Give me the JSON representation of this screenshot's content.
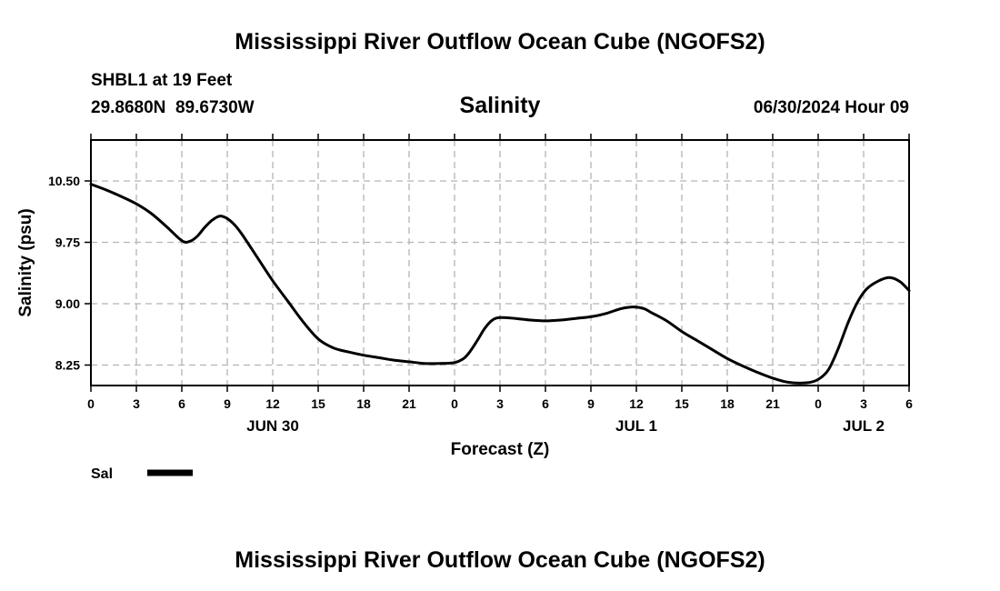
{
  "page": {
    "title": "Mississippi River Outflow Ocean Cube (NGOFS2)",
    "footer_title": "Mississippi River Outflow Ocean Cube (NGOFS2)"
  },
  "header": {
    "station": "SHBL1 at 19 Feet",
    "coords": "29.8680N  89.6730W",
    "variable": "Salinity",
    "datetime": "06/30/2024 Hour 09"
  },
  "chart_data": {
    "type": "line",
    "title": "Salinity",
    "xlabel": "Forecast (Z)",
    "ylabel": "Salinity (psu)",
    "ylim": [
      8.0,
      11.0
    ],
    "xlim": [
      0,
      54
    ],
    "yticks": [
      {
        "value": 8.25,
        "label": "8.25"
      },
      {
        "value": 9.0,
        "label": "9.00"
      },
      {
        "value": 9.75,
        "label": "9.75"
      },
      {
        "value": 10.5,
        "label": "10.50"
      }
    ],
    "xticks": [
      {
        "value": 0,
        "label": "0"
      },
      {
        "value": 3,
        "label": "3"
      },
      {
        "value": 6,
        "label": "6"
      },
      {
        "value": 9,
        "label": "9"
      },
      {
        "value": 12,
        "label": "12"
      },
      {
        "value": 15,
        "label": "15"
      },
      {
        "value": 18,
        "label": "18"
      },
      {
        "value": 21,
        "label": "21"
      },
      {
        "value": 24,
        "label": "0"
      },
      {
        "value": 27,
        "label": "3"
      },
      {
        "value": 30,
        "label": "6"
      },
      {
        "value": 33,
        "label": "9"
      },
      {
        "value": 36,
        "label": "12"
      },
      {
        "value": 39,
        "label": "15"
      },
      {
        "value": 42,
        "label": "18"
      },
      {
        "value": 45,
        "label": "21"
      },
      {
        "value": 48,
        "label": "0"
      },
      {
        "value": 51,
        "label": "3"
      },
      {
        "value": 54,
        "label": "6"
      }
    ],
    "date_labels": [
      {
        "value": 12,
        "label": "JUN 30"
      },
      {
        "value": 36,
        "label": "JUL 1"
      },
      {
        "value": 51,
        "label": "JUL 2"
      }
    ],
    "grid": true,
    "legend_position": "bottom-left",
    "series": [
      {
        "name": "Sal",
        "color": "#000000",
        "points": [
          [
            0,
            10.46
          ],
          [
            1,
            10.39
          ],
          [
            2,
            10.31
          ],
          [
            3,
            10.22
          ],
          [
            4,
            10.1
          ],
          [
            5,
            9.94
          ],
          [
            6,
            9.77
          ],
          [
            6.5,
            9.76
          ],
          [
            7,
            9.82
          ],
          [
            7.5,
            9.93
          ],
          [
            8,
            10.02
          ],
          [
            8.5,
            10.07
          ],
          [
            9,
            10.04
          ],
          [
            9.5,
            9.96
          ],
          [
            10,
            9.84
          ],
          [
            11,
            9.56
          ],
          [
            12,
            9.28
          ],
          [
            13,
            9.03
          ],
          [
            14,
            8.78
          ],
          [
            15,
            8.57
          ],
          [
            16,
            8.46
          ],
          [
            17,
            8.41
          ],
          [
            18,
            8.37
          ],
          [
            19,
            8.34
          ],
          [
            20,
            8.31
          ],
          [
            21,
            8.29
          ],
          [
            22,
            8.27
          ],
          [
            23,
            8.27
          ],
          [
            24,
            8.28
          ],
          [
            24.6,
            8.33
          ],
          [
            25,
            8.41
          ],
          [
            25.5,
            8.55
          ],
          [
            26,
            8.7
          ],
          [
            26.5,
            8.8
          ],
          [
            27,
            8.83
          ],
          [
            28,
            8.82
          ],
          [
            29,
            8.8
          ],
          [
            30,
            8.79
          ],
          [
            31,
            8.8
          ],
          [
            32,
            8.82
          ],
          [
            33,
            8.84
          ],
          [
            34,
            8.88
          ],
          [
            35,
            8.94
          ],
          [
            35.8,
            8.96
          ],
          [
            36.5,
            8.94
          ],
          [
            37,
            8.89
          ],
          [
            38,
            8.79
          ],
          [
            39,
            8.66
          ],
          [
            40,
            8.55
          ],
          [
            41,
            8.44
          ],
          [
            42,
            8.33
          ],
          [
            43,
            8.24
          ],
          [
            44,
            8.16
          ],
          [
            45,
            8.09
          ],
          [
            46,
            8.04
          ],
          [
            47,
            8.03
          ],
          [
            47.7,
            8.05
          ],
          [
            48.2,
            8.1
          ],
          [
            48.7,
            8.2
          ],
          [
            49.3,
            8.44
          ],
          [
            50,
            8.78
          ],
          [
            50.6,
            9.02
          ],
          [
            51.2,
            9.18
          ],
          [
            52,
            9.28
          ],
          [
            52.7,
            9.32
          ],
          [
            53.4,
            9.27
          ],
          [
            54,
            9.16
          ]
        ]
      }
    ]
  }
}
